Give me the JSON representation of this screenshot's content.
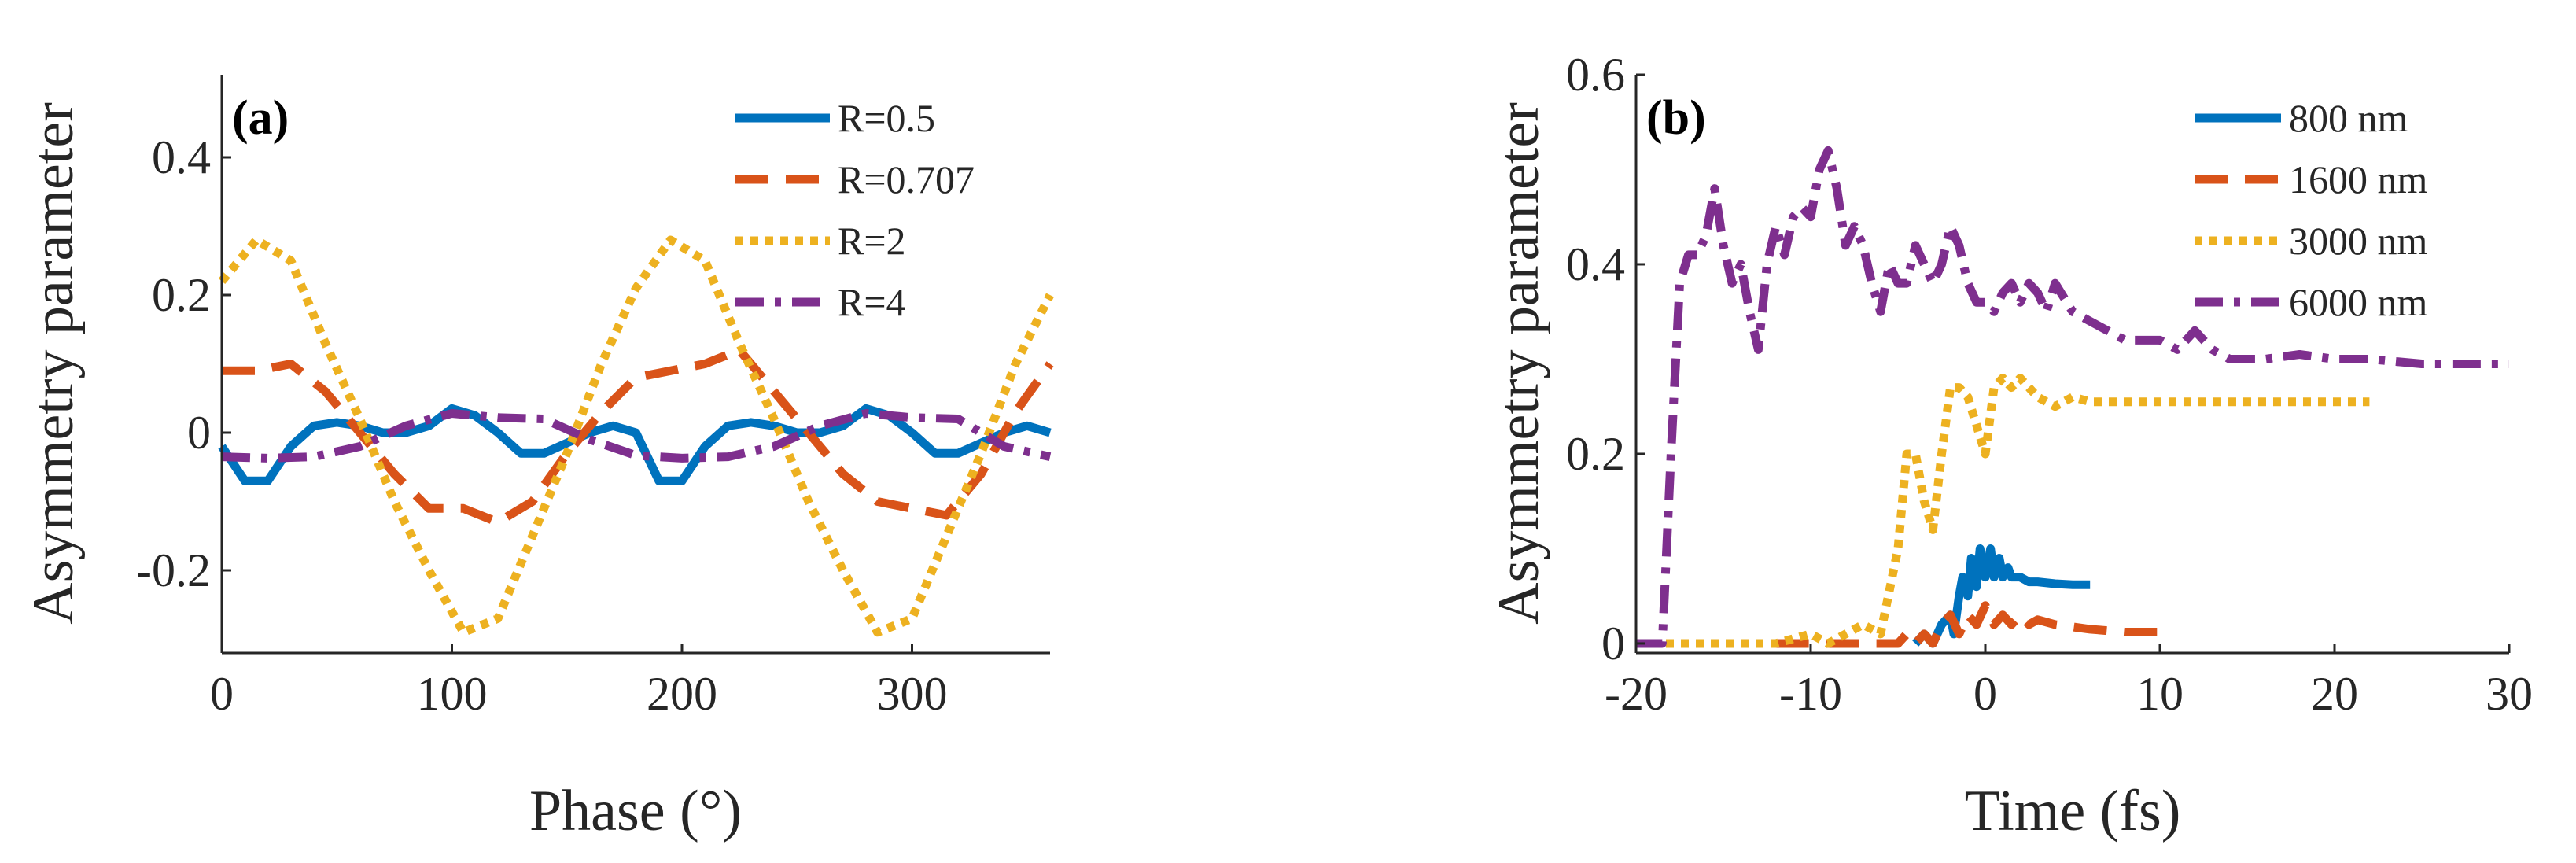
{
  "chart_data": [
    {
      "type": "line",
      "panel_label": "(a)",
      "xlabel": "Phase (°)",
      "ylabel": "Asymmetry parameter",
      "xlim": [
        0,
        360
      ],
      "ylim": [
        -0.32,
        0.52
      ],
      "xticks": [
        0,
        100,
        200,
        300
      ],
      "xtick_labels": [
        "0",
        "100",
        "200",
        "300"
      ],
      "yticks": [
        -0.2,
        0,
        0.2,
        0.4
      ],
      "ytick_labels": [
        "-0.2",
        "0",
        "0.2",
        "0.4"
      ],
      "legend_position": "top-right",
      "series": [
        {
          "name": "R=0.5",
          "color": "#0072BD",
          "dash": "solid",
          "x": [
            0,
            10,
            20,
            30,
            40,
            50,
            60,
            70,
            80,
            90,
            100,
            110,
            120,
            130,
            140,
            150,
            160,
            170,
            180,
            190,
            200,
            210,
            220,
            230,
            240,
            250,
            260,
            270,
            280,
            290,
            300,
            310,
            320,
            330,
            340,
            350,
            360
          ],
          "y": [
            -0.02,
            -0.07,
            -0.07,
            -0.02,
            0.01,
            0.015,
            0.01,
            0.0,
            0.0,
            0.01,
            0.035,
            0.025,
            0.0,
            -0.03,
            -0.03,
            -0.015,
            0.0,
            0.01,
            0.0,
            -0.07,
            -0.07,
            -0.02,
            0.01,
            0.015,
            0.01,
            0.0,
            0.0,
            0.01,
            0.035,
            0.025,
            0.0,
            -0.03,
            -0.03,
            -0.015,
            0.0,
            0.01,
            0.0
          ]
        },
        {
          "name": "R=0.707",
          "color": "#D95319",
          "dash": "dashed",
          "x": [
            0,
            15,
            30,
            45,
            60,
            75,
            90,
            105,
            120,
            135,
            150,
            165,
            180,
            195,
            210,
            225,
            240,
            255,
            270,
            285,
            300,
            315,
            330,
            345,
            360
          ],
          "y": [
            0.09,
            0.09,
            0.1,
            0.06,
            0.0,
            -0.06,
            -0.11,
            -0.11,
            -0.13,
            -0.1,
            -0.03,
            0.03,
            0.08,
            0.09,
            0.1,
            0.12,
            0.06,
            0.0,
            -0.06,
            -0.1,
            -0.11,
            -0.12,
            -0.06,
            0.03,
            0.1
          ]
        },
        {
          "name": "R=2",
          "color": "#EDB120",
          "dash": "dotted",
          "x": [
            0,
            15,
            30,
            45,
            60,
            75,
            90,
            105,
            120,
            135,
            150,
            165,
            180,
            195,
            210,
            225,
            240,
            255,
            270,
            285,
            300,
            315,
            330,
            345,
            360
          ],
          "y": [
            0.22,
            0.28,
            0.25,
            0.13,
            0.02,
            -0.1,
            -0.2,
            -0.29,
            -0.27,
            -0.15,
            -0.03,
            0.1,
            0.21,
            0.28,
            0.25,
            0.13,
            0.02,
            -0.1,
            -0.2,
            -0.29,
            -0.27,
            -0.15,
            -0.03,
            0.1,
            0.2
          ]
        },
        {
          "name": "R=4",
          "color": "#7E2F8E",
          "dash": "dashdot",
          "x": [
            0,
            20,
            40,
            60,
            80,
            100,
            120,
            140,
            160,
            180,
            200,
            220,
            240,
            260,
            280,
            300,
            320,
            340,
            360
          ],
          "y": [
            -0.035,
            -0.037,
            -0.035,
            -0.02,
            0.01,
            0.028,
            0.022,
            0.02,
            -0.01,
            -0.033,
            -0.037,
            -0.035,
            -0.02,
            0.01,
            0.028,
            0.022,
            0.02,
            -0.02,
            -0.035
          ]
        }
      ]
    },
    {
      "type": "line",
      "panel_label": "(b)",
      "xlabel": "Time (fs)",
      "ylabel": "Asymmetry parameter",
      "xlim": [
        -20,
        30
      ],
      "ylim": [
        -0.01,
        0.6
      ],
      "xticks": [
        -20,
        -10,
        0,
        10,
        20,
        30
      ],
      "xtick_labels": [
        "-20",
        "-10",
        "0",
        "10",
        "20",
        "30"
      ],
      "yticks": [
        0,
        0.2,
        0.4,
        0.6
      ],
      "ytick_labels": [
        "0",
        "0.2",
        "0.4",
        "0.6"
      ],
      "legend_position": "top-right",
      "series": [
        {
          "name": "800 nm",
          "color": "#0072BD",
          "dash": "solid",
          "x": [
            -4.0,
            -3.5,
            -3.0,
            -2.5,
            -2.0,
            -1.8,
            -1.5,
            -1.3,
            -1.0,
            -0.8,
            -0.5,
            -0.3,
            0.0,
            0.3,
            0.5,
            0.8,
            1.0,
            1.3,
            1.5,
            2.0,
            2.5,
            3.0,
            4.0,
            5.0,
            6.0
          ],
          "y": [
            0.0,
            0.01,
            0.0,
            0.02,
            0.03,
            0.01,
            0.05,
            0.07,
            0.05,
            0.09,
            0.06,
            0.1,
            0.07,
            0.1,
            0.07,
            0.09,
            0.07,
            0.08,
            0.07,
            0.07,
            0.065,
            0.065,
            0.063,
            0.062,
            0.062
          ]
        },
        {
          "name": "1600 nm",
          "color": "#D95319",
          "dash": "dashed",
          "x": [
            -12,
            -10,
            -8,
            -6,
            -5,
            -4.5,
            -4,
            -3.5,
            -3,
            -2.5,
            -2,
            -1.5,
            -1,
            -0.5,
            0,
            0.5,
            1,
            1.5,
            2,
            2.5,
            3,
            4,
            6,
            8,
            10
          ],
          "y": [
            0.0,
            0.0,
            0.0,
            0.0,
            0.0,
            0.01,
            0.0,
            0.01,
            0.0,
            0.02,
            0.03,
            0.01,
            0.03,
            0.02,
            0.04,
            0.02,
            0.03,
            0.02,
            0.03,
            0.02,
            0.025,
            0.02,
            0.015,
            0.012,
            0.012
          ]
        },
        {
          "name": "3000 nm",
          "color": "#EDB120",
          "dash": "dotted",
          "x": [
            -20,
            -16,
            -12,
            -10,
            -9,
            -8,
            -7,
            -6,
            -5,
            -4.5,
            -4,
            -3.5,
            -3,
            -2.5,
            -2,
            -1.5,
            -1,
            -0.5,
            0,
            0.5,
            1,
            1.5,
            2,
            3,
            4,
            5,
            6,
            8,
            10,
            14,
            18,
            22
          ],
          "y": [
            0.0,
            0.0,
            0.0,
            0.01,
            0.0,
            0.01,
            0.02,
            0.01,
            0.1,
            0.2,
            0.2,
            0.15,
            0.12,
            0.2,
            0.27,
            0.27,
            0.26,
            0.23,
            0.2,
            0.27,
            0.28,
            0.27,
            0.28,
            0.26,
            0.25,
            0.26,
            0.255,
            0.255,
            0.255,
            0.255,
            0.255,
            0.255
          ]
        },
        {
          "name": "6000 nm",
          "color": "#7E2F8E",
          "dash": "dashdot",
          "x": [
            -20,
            -19.5,
            -19,
            -18.5,
            -18,
            -17.5,
            -17,
            -16.5,
            -16,
            -15.5,
            -15,
            -14.5,
            -14,
            -13.5,
            -13,
            -12.5,
            -12,
            -11.5,
            -11,
            -10.5,
            -10,
            -9.5,
            -9,
            -8.5,
            -8,
            -7.5,
            -7,
            -6.5,
            -6,
            -5.5,
            -5,
            -4.5,
            -4,
            -3.5,
            -3,
            -2.5,
            -2,
            -1.5,
            -1,
            -0.5,
            0,
            0.5,
            1,
            1.5,
            2,
            2.5,
            3,
            3.5,
            4,
            5,
            6,
            7,
            8,
            9,
            10,
            11,
            12,
            13,
            14,
            16,
            18,
            20,
            22,
            25,
            28,
            30
          ],
          "y": [
            0.0,
            0.0,
            0.0,
            0.0,
            0.2,
            0.38,
            0.41,
            0.41,
            0.43,
            0.48,
            0.42,
            0.38,
            0.4,
            0.35,
            0.31,
            0.4,
            0.44,
            0.41,
            0.45,
            0.46,
            0.45,
            0.5,
            0.52,
            0.48,
            0.42,
            0.44,
            0.42,
            0.38,
            0.35,
            0.4,
            0.38,
            0.38,
            0.42,
            0.4,
            0.38,
            0.4,
            0.44,
            0.42,
            0.38,
            0.36,
            0.36,
            0.35,
            0.37,
            0.38,
            0.36,
            0.38,
            0.37,
            0.35,
            0.38,
            0.35,
            0.34,
            0.33,
            0.32,
            0.32,
            0.32,
            0.31,
            0.33,
            0.31,
            0.3,
            0.3,
            0.305,
            0.3,
            0.3,
            0.295,
            0.295,
            0.295
          ]
        }
      ]
    }
  ]
}
